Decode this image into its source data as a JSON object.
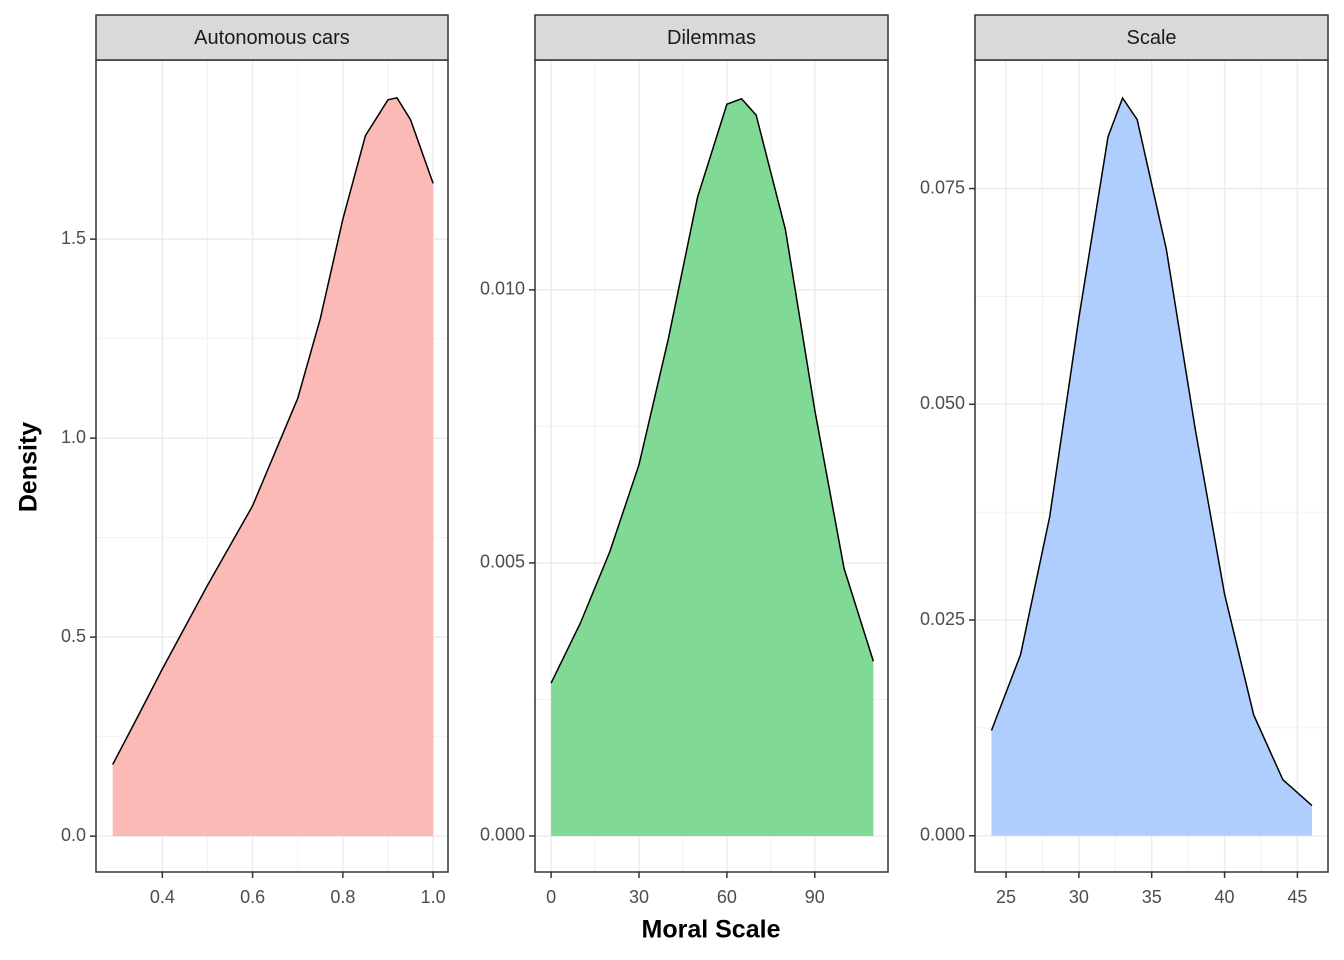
{
  "x_label": "Moral Scale",
  "y_label": "Density",
  "chart_data": [
    {
      "type": "area",
      "title": "Autonomous cars",
      "color": "#fbbab6",
      "grid": true,
      "x": [
        0.29,
        0.35,
        0.4,
        0.5,
        0.6,
        0.7,
        0.75,
        0.8,
        0.85,
        0.9,
        0.92,
        0.95,
        1.0
      ],
      "values": [
        0.18,
        0.31,
        0.42,
        0.63,
        0.83,
        1.1,
        1.3,
        1.55,
        1.76,
        1.85,
        1.855,
        1.8,
        1.64
      ],
      "xlim": [
        0.253,
        1.033
      ],
      "xticks": [
        0.4,
        0.6,
        0.8,
        {
          "value": 1.0,
          "label": "1.0"
        }
      ],
      "ylim": [
        -0.09,
        1.95
      ],
      "yticks": [
        {
          "value": 0,
          "label": "0.0"
        },
        0.5,
        {
          "value": 1.0,
          "label": "1.0"
        },
        1.5
      ]
    },
    {
      "type": "area",
      "title": "Dilemmas",
      "color": "#80d994",
      "grid": true,
      "x": [
        0,
        10,
        20,
        30,
        40,
        50,
        60,
        65,
        70,
        80,
        90,
        100,
        110
      ],
      "values": [
        0.0028,
        0.0039,
        0.0052,
        0.0068,
        0.0091,
        0.0117,
        0.0134,
        0.0135,
        0.0132,
        0.0111,
        0.0078,
        0.0049,
        0.0032
      ],
      "xlim": [
        -5.5,
        115
      ],
      "xticks": [
        0,
        30,
        60,
        90
      ],
      "ylim": [
        -0.00066,
        0.01421
      ],
      "yticks": [
        {
          "value": 0,
          "label": "0.000"
        },
        {
          "value": 0.005,
          "label": "0.005"
        },
        {
          "value": 0.01,
          "label": "0.010"
        }
      ]
    },
    {
      "type": "area",
      "title": "Scale",
      "color": "#afcdfd",
      "grid": true,
      "x": [
        24,
        26,
        28,
        30,
        32,
        33,
        34,
        36,
        38,
        40,
        42,
        44,
        46
      ],
      "values": [
        0.0122,
        0.021,
        0.037,
        0.06,
        0.081,
        0.0855,
        0.083,
        0.068,
        0.047,
        0.028,
        0.014,
        0.0065,
        0.0035
      ],
      "xlim": [
        22.87,
        47.1
      ],
      "xticks": [
        25,
        30,
        35,
        40,
        45
      ],
      "ylim": [
        -0.0042,
        0.0899
      ],
      "yticks": [
        {
          "value": 0,
          "label": "0.000"
        },
        {
          "value": 0.025,
          "label": "0.025"
        },
        {
          "value": 0.05,
          "label": "0.050"
        },
        {
          "value": 0.075,
          "label": "0.075"
        }
      ]
    }
  ]
}
